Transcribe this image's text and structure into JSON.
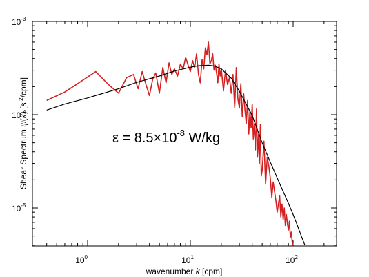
{
  "chart_data": {
    "type": "line",
    "title": "",
    "xscale": "log",
    "yscale": "log",
    "xlim": [
      0.4,
      200
    ],
    "ylim": [
      4e-06,
      0.001
    ],
    "x_ticks": [
      {
        "value": 1,
        "base": "10",
        "exp": "0"
      },
      {
        "value": 10,
        "base": "10",
        "exp": "1"
      },
      {
        "value": 100,
        "base": "10",
        "exp": "2"
      }
    ],
    "y_ticks": [
      {
        "value": 1e-05,
        "base": "10",
        "exp": "-5"
      },
      {
        "value": 0.0001,
        "base": "10",
        "exp": "-4"
      },
      {
        "value": 0.001,
        "base": "10",
        "exp": "-3"
      }
    ],
    "xlabel": {
      "pre": "wavenumber ",
      "italic": "k",
      "post": " [cpm]"
    },
    "ylabel": {
      "pre": "Shear Spectrum ",
      "psi": "ψ",
      "paren": "(",
      "italic": "k",
      "close": ")",
      "units_a": " [s",
      "units_sup": "-2",
      "units_b": "/cpm]"
    },
    "annotation": {
      "main": "ε = 8.5×10",
      "exp": "-8",
      "unit": " W/kg"
    },
    "grid": false,
    "series": [
      {
        "color": "#d42020",
        "x": [
          0.4,
          0.6,
          0.8,
          1.2,
          1.6,
          2.0,
          2.4,
          2.8,
          3.1,
          3.4,
          3.7,
          4.0,
          4.3,
          4.6,
          5.0,
          5.4,
          5.8,
          6.2,
          6.6,
          7.0,
          7.5,
          8.0,
          8.5,
          9.0,
          9.5,
          10,
          10.5,
          11,
          11.5,
          12,
          12.5,
          13,
          13.5,
          14,
          14.5,
          15,
          15.5,
          16,
          16.5,
          17,
          17.5,
          18,
          18.5,
          19,
          19.5,
          20,
          21,
          22,
          23,
          24,
          25,
          26,
          27,
          28,
          29,
          30,
          31,
          32,
          33,
          34,
          35,
          36,
          37,
          38,
          39,
          40,
          41,
          42,
          43,
          44,
          45,
          46,
          47,
          48,
          49,
          50,
          52,
          54,
          56,
          58,
          60,
          62,
          64,
          66,
          68,
          70,
          72,
          74,
          76,
          78,
          80,
          82,
          84,
          86,
          88,
          90,
          92,
          94,
          96,
          98,
          100
        ],
        "y": [
          0.000142,
          0.000175,
          0.000215,
          0.00029,
          0.00021,
          0.00017,
          0.00025,
          0.00027,
          0.00019,
          0.00029,
          0.00021,
          0.00016,
          0.00024,
          0.00028,
          0.00017,
          0.00032,
          0.00022,
          0.00036,
          0.00027,
          0.00031,
          0.00026,
          0.00035,
          0.00031,
          0.00041,
          0.00034,
          0.00029,
          0.00038,
          0.00032,
          0.00045,
          0.00027,
          0.00022,
          0.00039,
          0.00031,
          0.00052,
          0.00044,
          0.0006,
          0.00035,
          0.00038,
          0.00045,
          0.0003,
          0.00034,
          0.00028,
          0.00022,
          0.00035,
          0.00026,
          0.00031,
          0.00018,
          0.0003,
          0.00021,
          0.00025,
          0.00017,
          0.00027,
          0.00012,
          0.00032,
          0.000148,
          0.000118,
          0.000215,
          9.5e-05,
          0.000168,
          0.000112,
          8e-05,
          0.000142,
          6.2e-05,
          0.00011,
          7.2e-05,
          0.00013,
          5.5e-05,
          8e-05,
          4.2e-05,
          0.000115,
          3.5e-05,
          6.2e-05,
          3e-05,
          7.8e-05,
          2.2e-05,
          2.5e-05,
          5.2e-05,
          1.8e-05,
          3.5e-05,
          2.8e-05,
          2.1e-05,
          1.3e-05,
          1.9e-05,
          1.5e-05,
          1.2e-05,
          9e-06,
          1.1e-05,
          1.35e-05,
          8e-06,
          1.1e-05,
          7.5e-06,
          1e-05,
          6.5e-06,
          8.5e-06,
          6.8e-06,
          5.8e-06,
          7.2e-06,
          4.8e-06,
          5.5e-06,
          4.3e-06,
          4e-06
        ]
      },
      {
        "color": "#000000",
        "x": [
          0.4,
          0.6,
          1,
          2,
          3,
          5,
          7,
          10,
          12,
          15,
          17,
          20,
          25,
          30,
          40,
          50,
          60,
          70,
          80,
          90,
          100,
          110,
          120,
          130
        ],
        "y": [
          0.000112,
          0.00013,
          0.000151,
          0.00019,
          0.000222,
          0.00026,
          0.000294,
          0.000323,
          0.000335,
          0.00034,
          0.000334,
          0.00031,
          0.000246,
          0.000178,
          9.8e-05,
          5e-05,
          3.1e-05,
          2.1e-05,
          1.5e-05,
          1.12e-05,
          8.5e-06,
          6.5e-06,
          5e-06,
          4e-06
        ]
      }
    ]
  }
}
